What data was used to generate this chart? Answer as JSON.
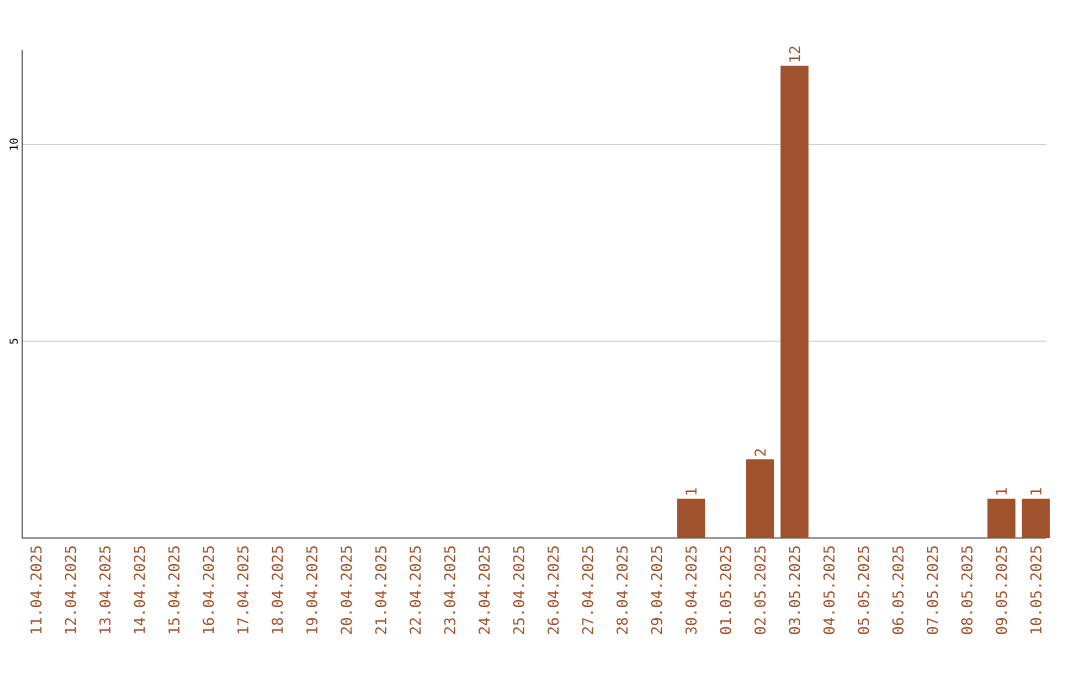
{
  "chart_data": {
    "type": "bar",
    "categories": [
      "11.04.2025",
      "12.04.2025",
      "13.04.2025",
      "14.04.2025",
      "15.04.2025",
      "16.04.2025",
      "17.04.2025",
      "18.04.2025",
      "19.04.2025",
      "20.04.2025",
      "21.04.2025",
      "22.04.2025",
      "23.04.2025",
      "24.04.2025",
      "25.04.2025",
      "26.04.2025",
      "27.04.2025",
      "28.04.2025",
      "29.04.2025",
      "30.04.2025",
      "01.05.2025",
      "02.05.2025",
      "03.05.2025",
      "04.05.2025",
      "05.05.2025",
      "06.05.2025",
      "07.05.2025",
      "08.05.2025",
      "09.05.2025",
      "10.05.2025"
    ],
    "values": [
      0,
      0,
      0,
      0,
      0,
      0,
      0,
      0,
      0,
      0,
      0,
      0,
      0,
      0,
      0,
      0,
      0,
      0,
      0,
      1,
      0,
      2,
      12,
      0,
      0,
      0,
      0,
      0,
      1,
      1
    ],
    "value_labels": [
      null,
      null,
      null,
      null,
      null,
      null,
      null,
      null,
      null,
      null,
      null,
      null,
      null,
      null,
      null,
      null,
      null,
      null,
      null,
      "1",
      null,
      "2",
      "12",
      null,
      null,
      null,
      null,
      null,
      "1",
      "1"
    ],
    "color": "#a0522d",
    "ylim": [
      0,
      12.4
    ],
    "yticks": [
      5,
      10
    ],
    "grid": "y"
  }
}
